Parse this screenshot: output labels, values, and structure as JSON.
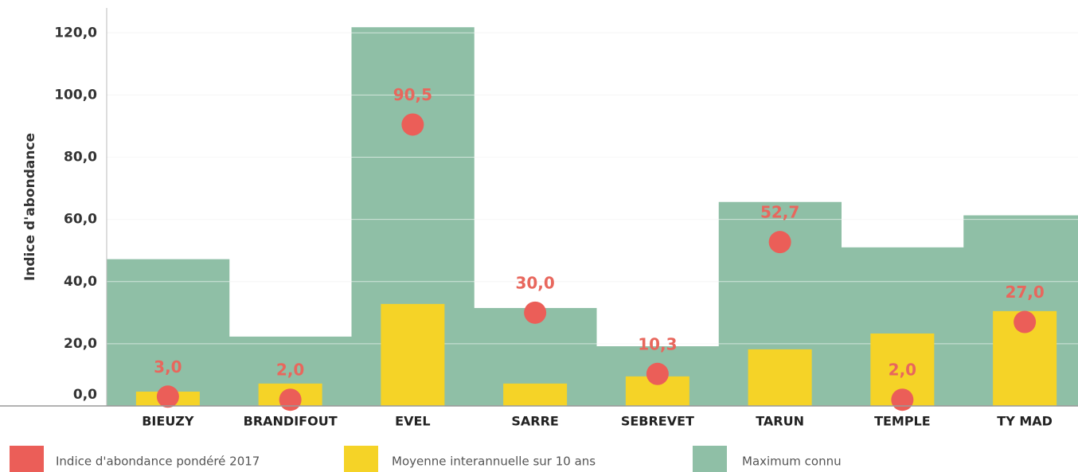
{
  "chart_data": {
    "type": "bar",
    "y_label": "Indice d'abondance",
    "categories": [
      "BIEUZY",
      "BRANDIFOUT",
      "EVEL",
      "SARRE",
      "SEBREVET",
      "TARUN",
      "TEMPLE",
      "TY MAD"
    ],
    "series": [
      {
        "name": "Maximum connu",
        "color": "#8fbfa6",
        "values": [
          47.2,
          22.3,
          121.8,
          31.5,
          19.2,
          65.6,
          51.0,
          61.3
        ]
      },
      {
        "name": "Moyenne interannuelle sur 10 ans",
        "color": "#f5d327",
        "values": [
          4.6,
          7.2,
          32.8,
          7.2,
          9.5,
          18.2,
          23.3,
          30.5
        ]
      },
      {
        "name": "Indice d'abondance pondéré 2017",
        "color": "#eb5e58",
        "values": [
          3.0,
          2.0,
          90.5,
          30.0,
          10.3,
          52.7,
          2.0,
          27.0
        ],
        "value_labels": [
          "3,0",
          "2,0",
          "90,5",
          "30,0",
          "10,3",
          "52,7",
          "2,0",
          "27,0"
        ]
      }
    ],
    "ylim": [
      0,
      128
    ],
    "yticks": [
      {
        "value": 0,
        "label": "0,0"
      },
      {
        "value": 20,
        "label": "20,0"
      },
      {
        "value": 40,
        "label": "40,0"
      },
      {
        "value": 60,
        "label": "60,0"
      },
      {
        "value": 80,
        "label": "80,0"
      },
      {
        "value": 100,
        "label": "100,0"
      },
      {
        "value": 120,
        "label": "120,0"
      }
    ],
    "grid": true
  }
}
